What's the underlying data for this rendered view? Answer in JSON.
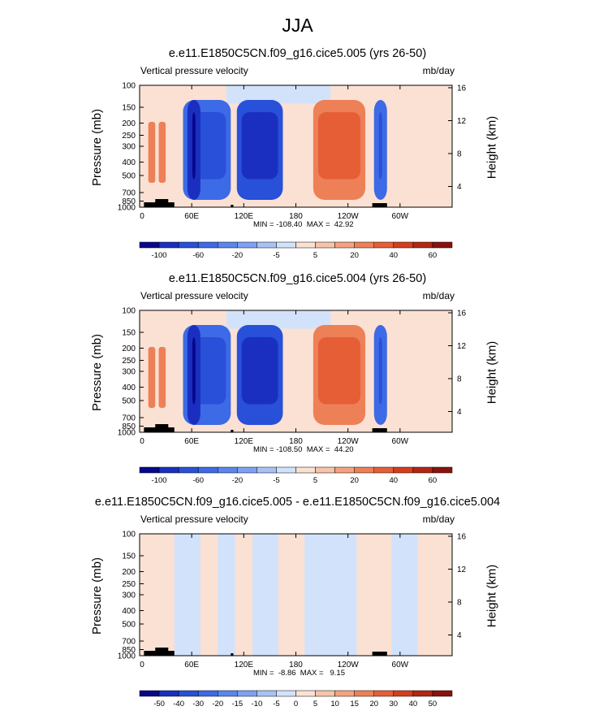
{
  "figure": {
    "title": "JJA"
  },
  "chart_data": [
    {
      "type": "heatmap",
      "title": "e.e11.E1850C5CN.f09_g16.cice5.005 (yrs 26-50)",
      "left_label": "Vertical pressure velocity",
      "units": "mb/day",
      "ylabel": "Pressure (mb)",
      "ylabel_right": "Height (km)",
      "xticks": [
        "0",
        "60E",
        "120E",
        "180",
        "120W",
        "60W"
      ],
      "yticks": [
        "100",
        "150",
        "200",
        "250",
        "300",
        "400",
        "500",
        "700",
        "850",
        "1000"
      ],
      "yticks_right": [
        "16",
        "12",
        "8",
        "4"
      ],
      "min": -108.4,
      "max": 42.92,
      "minmax_text": "MIN = -108.40  MAX =  42.92",
      "colorbar_labels": [
        "-100",
        "-60",
        "-20",
        "-5",
        "5",
        "20",
        "40",
        "60"
      ],
      "colors": [
        "#08088a",
        "#1a2fc0",
        "#2850d8",
        "#3d6ae6",
        "#5a86ee",
        "#7ea2f2",
        "#a8c2f6",
        "#d2e2fa",
        "#fbe1d3",
        "#f8c3a9",
        "#f4a27f",
        "#ee8057",
        "#e65e36",
        "#d43e1e",
        "#b32614",
        "#8a120c"
      ],
      "regions": [
        {
          "name": "ascent-africa-india",
          "x0": 50,
          "x1": 105,
          "level": -4
        },
        {
          "name": "ascent-core",
          "x0": 55,
          "x1": 70,
          "level": -6
        },
        {
          "name": "ascent-west-pacific",
          "x0": 112,
          "x1": 165,
          "level": -5
        },
        {
          "name": "descent-east-pacific",
          "x0": 200,
          "x1": 260,
          "level": 3
        },
        {
          "name": "ascent-americas",
          "x0": 270,
          "x1": 285,
          "level": -4
        }
      ]
    },
    {
      "type": "heatmap",
      "title": "e.e11.E1850C5CN.f09_g16.cice5.004 (yrs 26-50)",
      "left_label": "Vertical pressure velocity",
      "units": "mb/day",
      "ylabel": "Pressure (mb)",
      "ylabel_right": "Height (km)",
      "xticks": [
        "0",
        "60E",
        "120E",
        "180",
        "120W",
        "60W"
      ],
      "yticks": [
        "100",
        "150",
        "200",
        "250",
        "300",
        "400",
        "500",
        "700",
        "850",
        "1000"
      ],
      "yticks_right": [
        "16",
        "12",
        "8",
        "4"
      ],
      "min": -108.5,
      "max": 44.2,
      "minmax_text": "MIN = -108.50  MAX =  44.20",
      "colorbar_labels": [
        "-100",
        "-60",
        "-20",
        "-5",
        "5",
        "20",
        "40",
        "60"
      ],
      "colors": [
        "#08088a",
        "#1a2fc0",
        "#2850d8",
        "#3d6ae6",
        "#5a86ee",
        "#7ea2f2",
        "#a8c2f6",
        "#d2e2fa",
        "#fbe1d3",
        "#f8c3a9",
        "#f4a27f",
        "#ee8057",
        "#e65e36",
        "#d43e1e",
        "#b32614",
        "#8a120c"
      ],
      "regions": [
        {
          "name": "ascent-africa-india",
          "x0": 50,
          "x1": 105,
          "level": -4
        },
        {
          "name": "ascent-core",
          "x0": 55,
          "x1": 70,
          "level": -6
        },
        {
          "name": "ascent-west-pacific",
          "x0": 112,
          "x1": 165,
          "level": -5
        },
        {
          "name": "descent-east-pacific",
          "x0": 200,
          "x1": 260,
          "level": 3
        },
        {
          "name": "ascent-americas",
          "x0": 270,
          "x1": 285,
          "level": -4
        }
      ]
    },
    {
      "type": "heatmap",
      "title": "e.e11.E1850C5CN.f09_g16.cice5.005 - e.e11.E1850C5CN.f09_g16.cice5.004",
      "left_label": "Vertical pressure velocity",
      "units": "mb/day",
      "ylabel": "Pressure (mb)",
      "ylabel_right": "Height (km)",
      "xticks": [
        "0",
        "60E",
        "120E",
        "180",
        "120W",
        "60W"
      ],
      "yticks": [
        "100",
        "150",
        "200",
        "250",
        "300",
        "400",
        "500",
        "700",
        "850",
        "1000"
      ],
      "yticks_right": [
        "16",
        "12",
        "8",
        "4"
      ],
      "min": -8.86,
      "max": 9.15,
      "minmax_text": "MIN =  -8.86  MAX =   9.15",
      "colorbar_labels": [
        "-50",
        "-40",
        "-30",
        "-20",
        "-15",
        "-10",
        "-5",
        "0",
        "5",
        "10",
        "15",
        "20",
        "30",
        "40",
        "50"
      ],
      "colors": [
        "#08088a",
        "#1a2fc0",
        "#2850d8",
        "#3d6ae6",
        "#5a86ee",
        "#7ea2f2",
        "#a8c2f6",
        "#d2e2fa",
        "#fbe1d3",
        "#f8c3a9",
        "#f4a27f",
        "#ee8057",
        "#e65e36",
        "#d43e1e",
        "#b32614",
        "#8a120c"
      ],
      "regions": []
    }
  ]
}
